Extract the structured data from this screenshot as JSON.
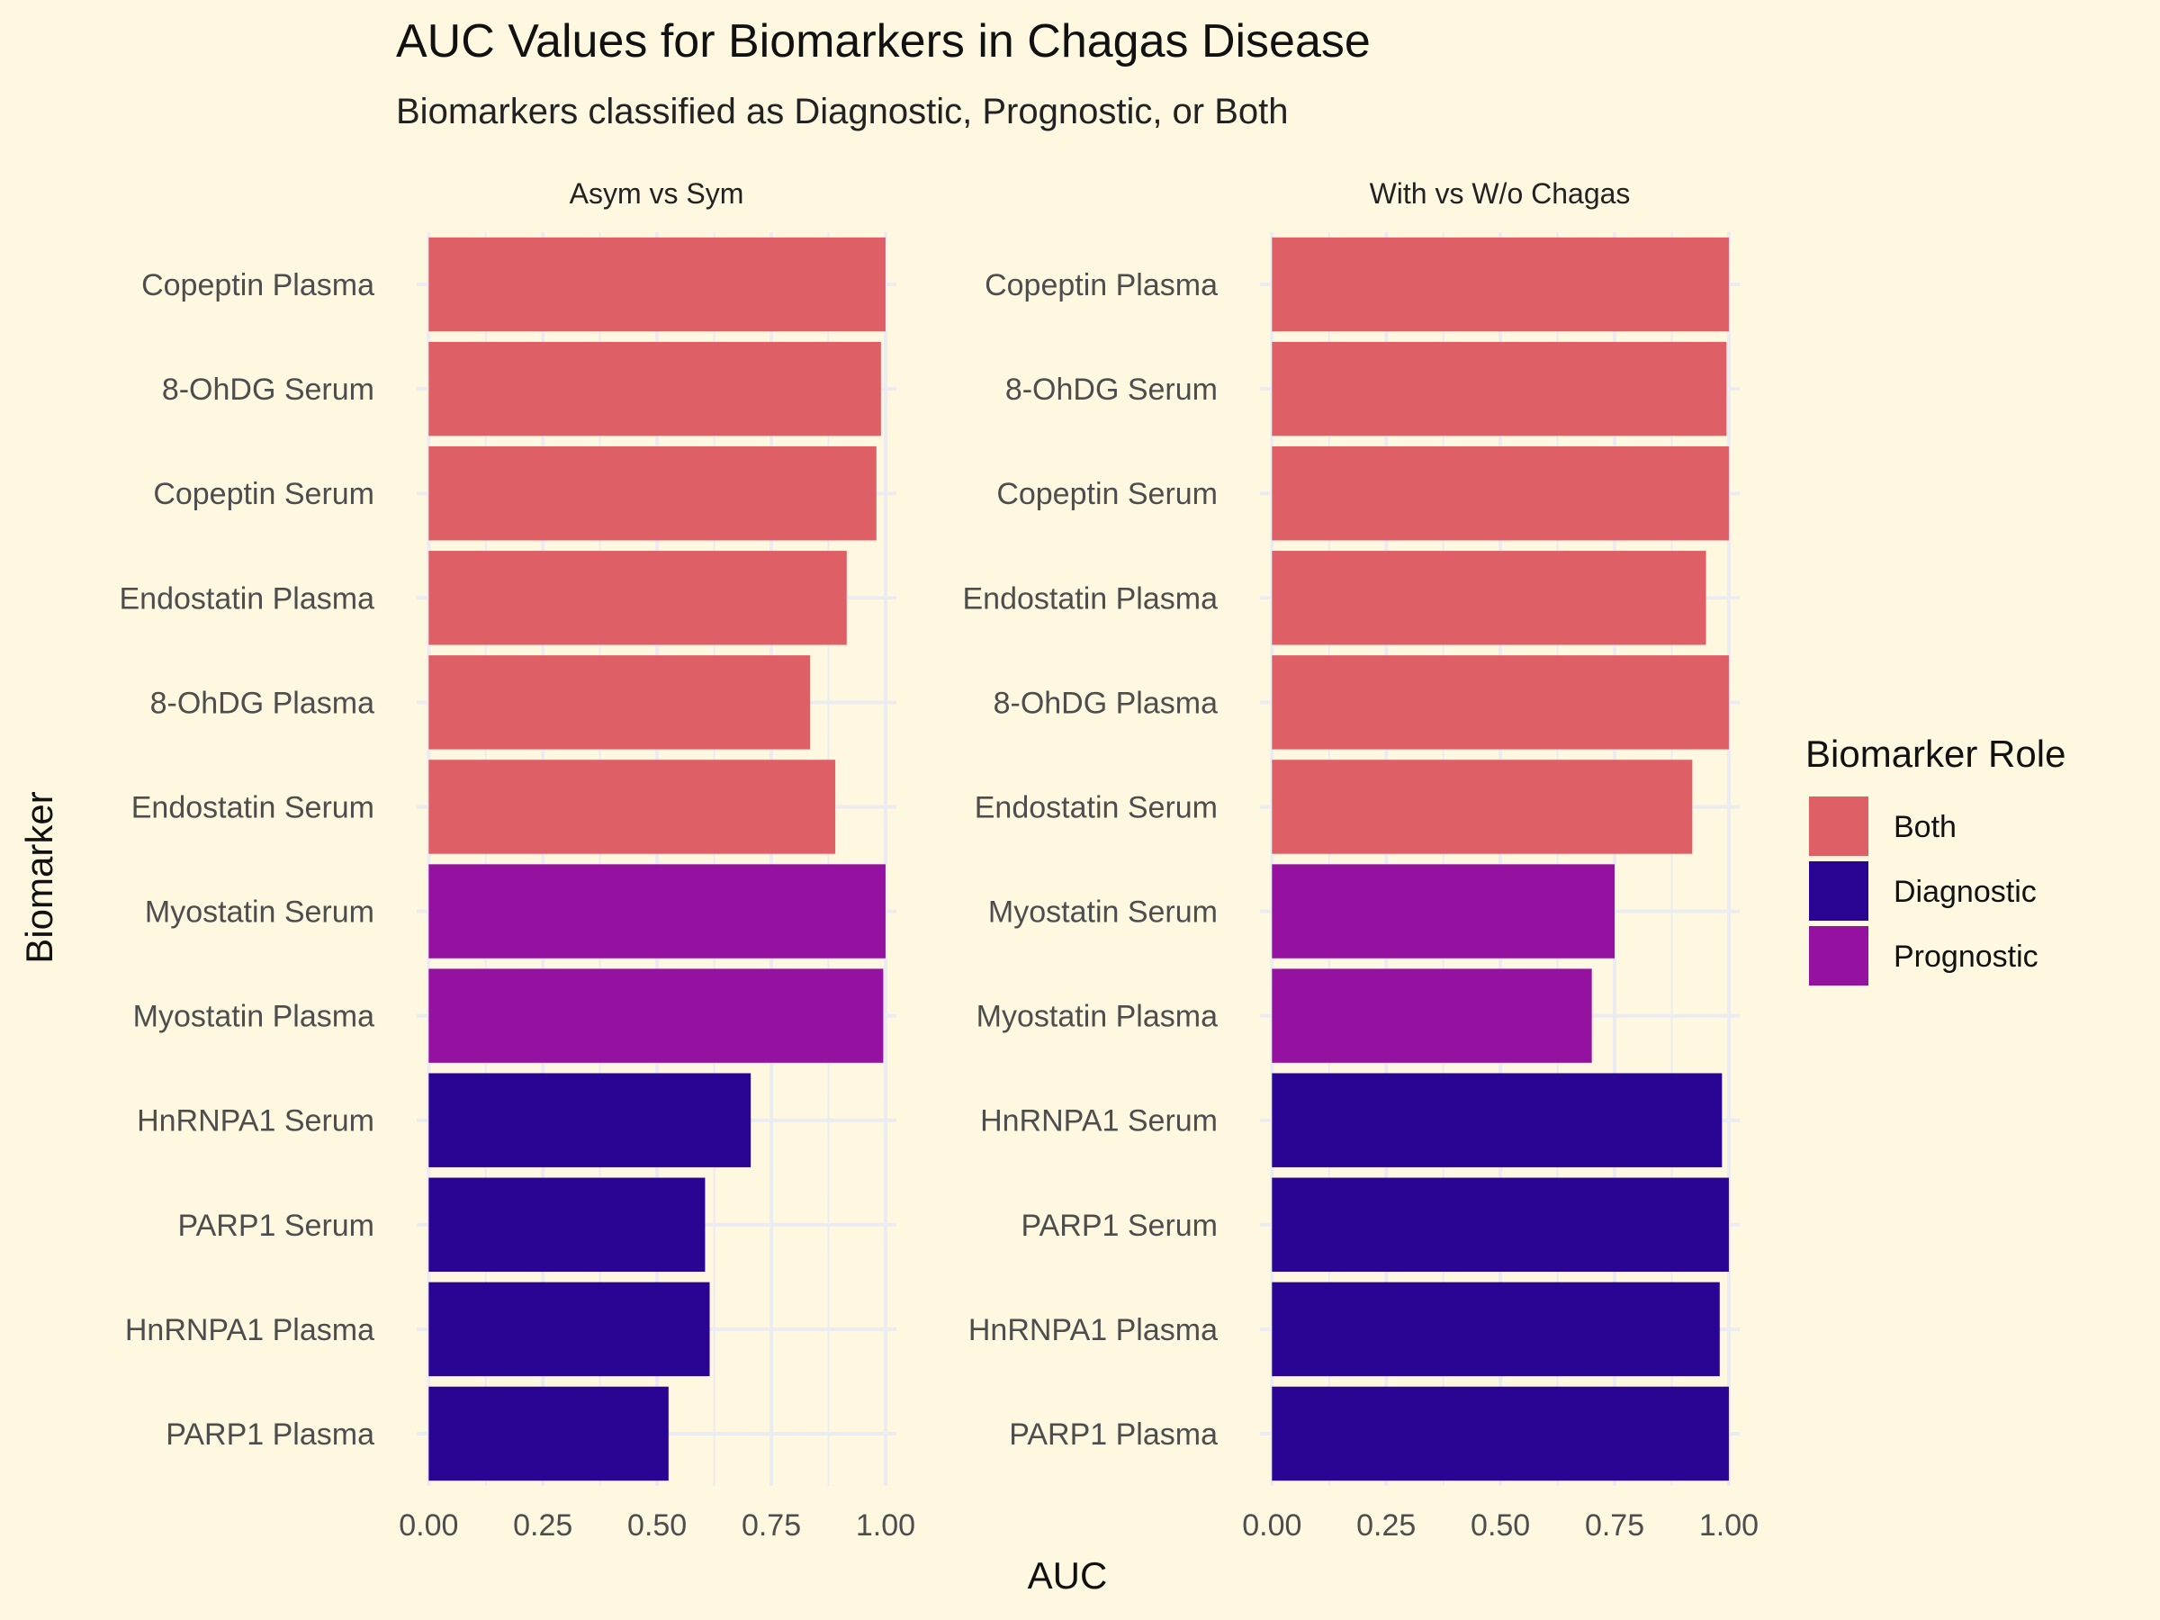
{
  "chart_data": {
    "type": "bar",
    "orientation": "horizontal",
    "title": "AUC Values for Biomarkers in Chagas Disease",
    "subtitle": "Biomarkers classified as Diagnostic, Prognostic, or Both",
    "xlabel": "AUC",
    "ylabel": "Biomarker",
    "xlim": [
      0,
      1
    ],
    "x_ticks": [
      "0.00",
      "0.25",
      "0.50",
      "0.75",
      "1.00"
    ],
    "grid": true,
    "legend": {
      "title": "Biomarker Role",
      "position": "right",
      "items": [
        {
          "label": "Both",
          "color": "#DE5F65"
        },
        {
          "label": "Diagnostic",
          "color": "#2A0593"
        },
        {
          "label": "Prognostic",
          "color": "#9512A1"
        }
      ]
    },
    "categories": [
      "Copeptin Plasma",
      "8-OhDG Serum",
      "Copeptin Serum",
      "Endostatin Plasma",
      "8-OhDG Plasma",
      "Endostatin Serum",
      "Myostatin Serum",
      "Myostatin Plasma",
      "HnRNPA1 Serum",
      "PARP1 Serum",
      "HnRNPA1 Plasma",
      "PARP1 Plasma"
    ],
    "roles": [
      "Both",
      "Both",
      "Both",
      "Both",
      "Both",
      "Both",
      "Prognostic",
      "Prognostic",
      "Diagnostic",
      "Diagnostic",
      "Diagnostic",
      "Diagnostic"
    ],
    "panels": [
      {
        "name": "Asym vs Sym",
        "values": [
          1.0,
          0.99,
          0.98,
          0.915,
          0.835,
          0.89,
          1.0,
          0.995,
          0.705,
          0.605,
          0.615,
          0.525
        ]
      },
      {
        "name": "With vs W/o Chagas",
        "values": [
          1.0,
          0.995,
          1.0,
          0.95,
          1.0,
          0.92,
          0.75,
          0.7,
          0.985,
          1.0,
          0.98,
          1.0
        ]
      }
    ]
  }
}
